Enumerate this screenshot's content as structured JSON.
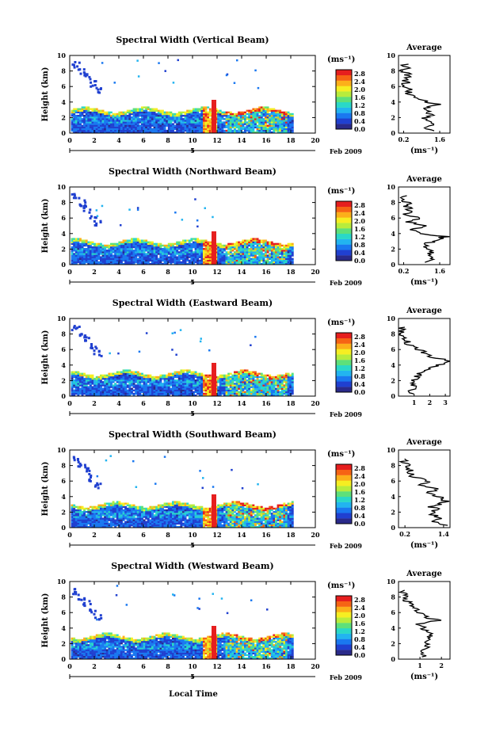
{
  "chart_data": {
    "type": "heatmap",
    "xlabel": "Local Time",
    "ylabel": "Height (km)",
    "x_ticks": [
      "0",
      "2",
      "4",
      "6",
      "8",
      "10",
      "12",
      "14",
      "16",
      "18",
      "20"
    ],
    "y_ticks": [
      "0",
      "2",
      "4",
      "6",
      "8",
      "10"
    ],
    "xlim": [
      0,
      20
    ],
    "ylim": [
      0,
      10
    ],
    "date_label": "Feb 2009",
    "day_marker": "5",
    "colorbar": {
      "unit": "(ms⁻¹)",
      "ticks": [
        "0.0",
        "0.4",
        "0.8",
        "1.2",
        "1.6",
        "2.0",
        "2.4",
        "2.8"
      ],
      "range": [
        0,
        3.0
      ],
      "colors": [
        "#2a2a8a",
        "#2040d0",
        "#1a78f0",
        "#22b4f0",
        "#2ad8c8",
        "#5ee07a",
        "#b8ec3c",
        "#f6ee22",
        "#fcb01a",
        "#f66414",
        "#e61e1e"
      ]
    },
    "panels": [
      {
        "title": "Spectral Width (Vertical Beam)",
        "avg": {
          "title": "Average",
          "xlabel": "(ms⁻¹)",
          "x_ticks": [
            "0.2",
            "1.6"
          ],
          "x_tick_values": [
            0.2,
            1.6
          ],
          "xlim": [
            0,
            2.0
          ],
          "heights": [
            0.3,
            0.8,
            1.3,
            1.8,
            2.3,
            2.8,
            3.2,
            3.6,
            4.0,
            4.5,
            5.0,
            5.5,
            6.0,
            6.5,
            7.0,
            7.5,
            8.0,
            8.5,
            9.0
          ],
          "values": [
            1.3,
            1.1,
            1.35,
            1.0,
            1.25,
            1.1,
            0.9,
            1.6,
            1.1,
            0.7,
            0.35,
            0.45,
            0.2,
            0.3,
            0.25,
            0.35,
            0.2,
            0.3,
            0.25
          ]
        }
      },
      {
        "title": "Spectral Width (Northward Beam)",
        "avg": {
          "title": "Average",
          "xlabel": "(ms⁻¹)",
          "x_ticks": [
            "0.2",
            "1.6"
          ],
          "x_tick_values": [
            0.2,
            1.6
          ],
          "xlim": [
            0,
            2.0
          ],
          "heights": [
            0.3,
            0.8,
            1.3,
            1.8,
            2.3,
            2.8,
            3.2,
            3.6,
            4.0,
            4.5,
            5.0,
            5.5,
            6.0,
            6.5,
            7.0,
            7.5,
            8.0,
            8.5,
            9.0
          ],
          "values": [
            1.2,
            1.4,
            1.1,
            1.3,
            1.0,
            1.2,
            1.5,
            1.8,
            1.0,
            0.6,
            1.1,
            0.4,
            0.8,
            0.3,
            0.5,
            0.25,
            0.35,
            0.2,
            0.3
          ]
        }
      },
      {
        "title": "Spectral Width (Eastward Beam)",
        "avg": {
          "title": "Average",
          "xlabel": "",
          "x_ticks": [
            "1",
            "2",
            "3"
          ],
          "x_tick_values": [
            1,
            2,
            3
          ],
          "xlim": [
            0,
            3.3
          ],
          "heights": [
            0.3,
            0.8,
            1.3,
            1.8,
            2.3,
            2.8,
            3.2,
            3.6,
            4.0,
            4.5,
            5.0,
            5.5,
            6.0,
            6.5,
            7.0,
            7.5,
            8.0,
            8.5,
            9.0
          ],
          "values": [
            0.9,
            0.8,
            1.0,
            0.9,
            1.1,
            1.3,
            1.6,
            2.0,
            2.5,
            3.2,
            2.2,
            1.8,
            1.2,
            0.8,
            0.5,
            0.35,
            0.25,
            0.2,
            0.15
          ]
        }
      },
      {
        "title": "Spectral Width (Southward Beam)",
        "avg": {
          "title": "Average",
          "xlabel": "(ms⁻¹)",
          "x_ticks": [
            "0.2",
            "1.4"
          ],
          "x_tick_values": [
            0.2,
            1.4
          ],
          "xlim": [
            0,
            1.6
          ],
          "heights": [
            0.3,
            0.8,
            1.3,
            1.8,
            2.3,
            2.8,
            3.2,
            3.6,
            4.0,
            4.5,
            5.0,
            5.5,
            6.0,
            6.5,
            7.0,
            7.5,
            8.0,
            8.5,
            9.0
          ],
          "values": [
            1.4,
            1.1,
            1.3,
            1.0,
            1.2,
            1.0,
            1.4,
            1.5,
            1.2,
            0.9,
            1.3,
            0.7,
            0.9,
            0.5,
            0.4,
            0.35,
            0.25,
            0.2,
            0.15
          ]
        }
      },
      {
        "title": "Spectral Width (Westward Beam)",
        "avg": {
          "title": "Average",
          "xlabel": "(ms⁻¹)",
          "x_ticks": [
            "1",
            "2"
          ],
          "x_tick_values": [
            1,
            2
          ],
          "xlim": [
            0,
            2.4
          ],
          "heights": [
            0.3,
            0.8,
            1.3,
            1.8,
            2.3,
            2.8,
            3.2,
            3.6,
            4.0,
            4.5,
            5.0,
            5.5,
            6.0,
            6.5,
            7.0,
            7.5,
            8.0,
            8.5,
            9.0
          ],
          "values": [
            1.2,
            1.1,
            1.3,
            1.2,
            1.5,
            1.3,
            1.7,
            1.4,
            1.2,
            1.0,
            1.8,
            1.2,
            0.9,
            0.7,
            0.5,
            0.4,
            0.3,
            0.25,
            0.2
          ]
        }
      }
    ]
  }
}
